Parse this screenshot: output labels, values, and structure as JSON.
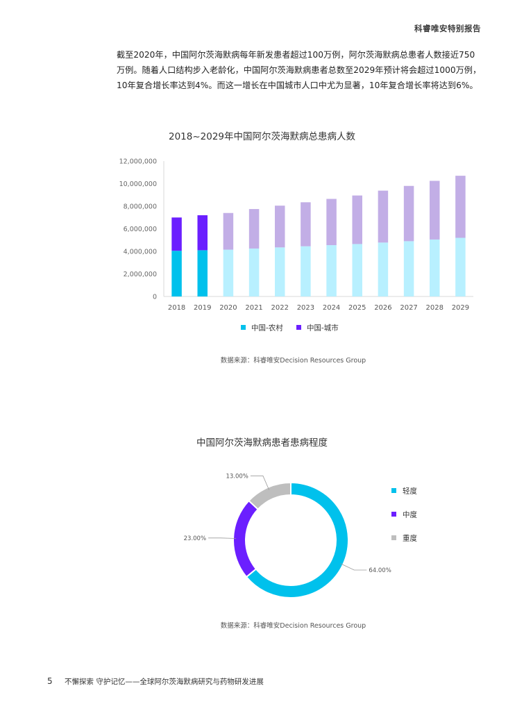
{
  "header": {
    "report_name": "科睿唯安特别报告"
  },
  "intro": {
    "lines": [
      "截至2020年，中国阿尔茨海默病每年新发患者超过100万例，阿尔茨海默病总患者人数接近750",
      "万例。随着人口结构步入老龄化，中国阿尔茨海默病患者总数至2029年预计将会超过1000万例，",
      "10年复合增长率达到4%。而这一增长在中国城市人口中尤为显著，10年复合增长率将达到6%。"
    ]
  },
  "chart_data": [
    {
      "type": "bar",
      "stacked": true,
      "title": "2018~2029年中国阿尔茨海默病总患病人数",
      "xlabel": "",
      "ylabel": "",
      "categories": [
        "2018",
        "2019",
        "2020",
        "2021",
        "2022",
        "2023",
        "2024",
        "2025",
        "2026",
        "2027",
        "2028",
        "2029"
      ],
      "series": [
        {
          "name": "中国-农村",
          "color": "#00c1ec",
          "projected_color": "#b8f0ff",
          "values": [
            4050000,
            4100000,
            4150000,
            4250000,
            4350000,
            4450000,
            4550000,
            4650000,
            4780000,
            4900000,
            5050000,
            5200000
          ]
        },
        {
          "name": "中国-城市",
          "color": "#6b1fff",
          "projected_color": "#c2aee6",
          "values": [
            2950000,
            3100000,
            3250000,
            3500000,
            3700000,
            3900000,
            4100000,
            4300000,
            4600000,
            4900000,
            5200000,
            5500000
          ]
        }
      ],
      "actual_count": 2,
      "ylim": [
        0,
        12000000
      ],
      "yticks": [
        0,
        2000000,
        4000000,
        6000000,
        8000000,
        10000000,
        12000000
      ],
      "ytick_labels": [
        "0",
        "2,000,000",
        "4,000,000",
        "6,000,000",
        "8,000,000",
        "10,000,000",
        "12,000,000"
      ],
      "grid": false,
      "legend": "bottom",
      "source": "数据来源：科睿唯安Decision Resources Group"
    },
    {
      "type": "pie",
      "donut": true,
      "title": "中国阿尔茨海默病患者患病程度",
      "slices": [
        {
          "label": "轻度",
          "value": 64.0,
          "display": "64.00%",
          "color": "#00c1ec"
        },
        {
          "label": "中度",
          "value": 23.0,
          "display": "23.00%",
          "color": "#6b1fff"
        },
        {
          "label": "重度",
          "value": 13.0,
          "display": "13.00%",
          "color": "#bebebe"
        }
      ],
      "legend": "right",
      "source": "数据来源：科睿唯安Decision Resources Group"
    }
  ],
  "footer": {
    "page_number": "5",
    "text": "不懈探索 守护记忆——全球阿尔茨海默病研究与药物研发进展"
  }
}
